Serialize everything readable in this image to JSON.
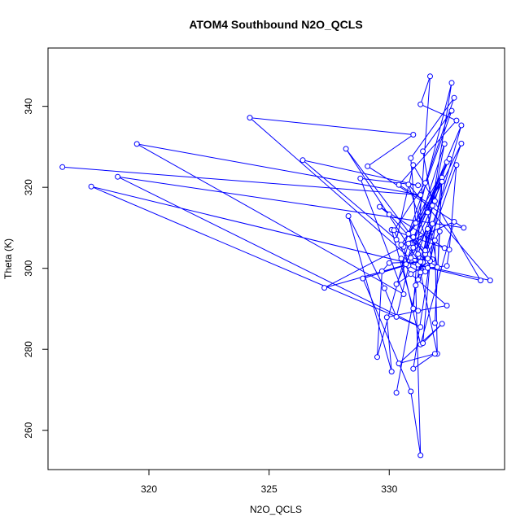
{
  "chart_data": {
    "type": "line",
    "title": "ATOM4 Southbound N2O_QCLS",
    "xlabel": "N2O_QCLS",
    "ylabel": "Theta (K)",
    "xlim": [
      315.8,
      334.8
    ],
    "ylim": [
      250.3,
      354.4
    ],
    "xticks": [
      320,
      325,
      330
    ],
    "yticks": [
      260,
      280,
      300,
      320,
      340
    ],
    "grid": false,
    "legend": "none",
    "series": [
      {
        "color": "#0000ff",
        "marker": "open-circle",
        "x": [
          316.4,
          331.3,
          319.5,
          330.6,
          328.8,
          331.2,
          326.4,
          330.3,
          331.0,
          333.8,
          317.6,
          331.3,
          318.7,
          333.1,
          329.1,
          331.0,
          324.2,
          331.5,
          328.2,
          331.5,
          330.0,
          329.6,
          332.3,
          330.1,
          331.0,
          331.7,
          331.3,
          332.8,
          330.4,
          331.8,
          331.4,
          332.6,
          330.6,
          330.8,
          330.2,
          331.5,
          332.7,
          330.9,
          331.1,
          332.6,
          331.4,
          333.0,
          330.9,
          332.4,
          331.2,
          332.0,
          331.6,
          333.0,
          331.2,
          334.2,
          330.8,
          331.8,
          330.3,
          331.9,
          330.8,
          332.5,
          330.9,
          332.2,
          331.9,
          332.1,
          331.4,
          332.8,
          332.5,
          332.4,
          331.6,
          331.3,
          330.7,
          332.3,
          331.2,
          331.8,
          331.5,
          331.0,
          332.0,
          331.9,
          331.7,
          330.9,
          331.6,
          331.0,
          330.3,
          329.8,
          328.3,
          330.1,
          329.9,
          331.2,
          332.4,
          330.9,
          330.5,
          331.3,
          332.7,
          330.5,
          332.2,
          331.0,
          331.9,
          330.4,
          332.2,
          331.4,
          331.7,
          331.1,
          331.3,
          330.9,
          328.9,
          331.6,
          327.3,
          330.8,
          329.5,
          329.7,
          330.0,
          331.3,
          330.3
        ],
        "y": [
          325.0,
          318.1,
          330.7,
          293.6,
          322.2,
          320.5,
          326.7,
          307.1,
          325.5,
          297.0,
          320.2,
          285.5,
          322.6,
          310.0,
          325.2,
          333.0,
          337.2,
          299.2,
          329.5,
          303.5,
          313.3,
          315.2,
          305.0,
          309.5,
          290.1,
          347.4,
          340.5,
          336.5,
          320.6,
          315.5,
          328.9,
          338.9,
          305.3,
          300.7,
          309.4,
          321.1,
          342.1,
          327.2,
          311.2,
          345.8,
          301.6,
          335.3,
          306.0,
          326.2,
          303.5,
          300.3,
          313.8,
          330.8,
          300.9,
          297.0,
          320.7,
          302.2,
          296.1,
          316.6,
          308.5,
          327.0,
          305.1,
          322.4,
          286.5,
          309.1,
          301.5,
          325.5,
          304.6,
          300.6,
          300.1,
          299.0,
          301.0,
          330.7,
          297.2,
          311.0,
          304.4,
          307.7,
          278.9,
          306.9,
          301.9,
          302.6,
          309.7,
          305.1,
          288.0,
          295.1,
          312.9,
          274.5,
          287.9,
          289.5,
          290.8,
          298.6,
          302.4,
          281.2,
          311.5,
          305.8,
          321.4,
          275.2,
          278.9,
          276.5,
          286.3,
          281.5,
          301.8,
          295.8,
          253.8,
          269.6,
          297.5,
          302.4,
          295.2,
          306.1,
          278.1,
          299.3,
          301.3,
          301.6,
          269.3
        ]
      }
    ]
  }
}
